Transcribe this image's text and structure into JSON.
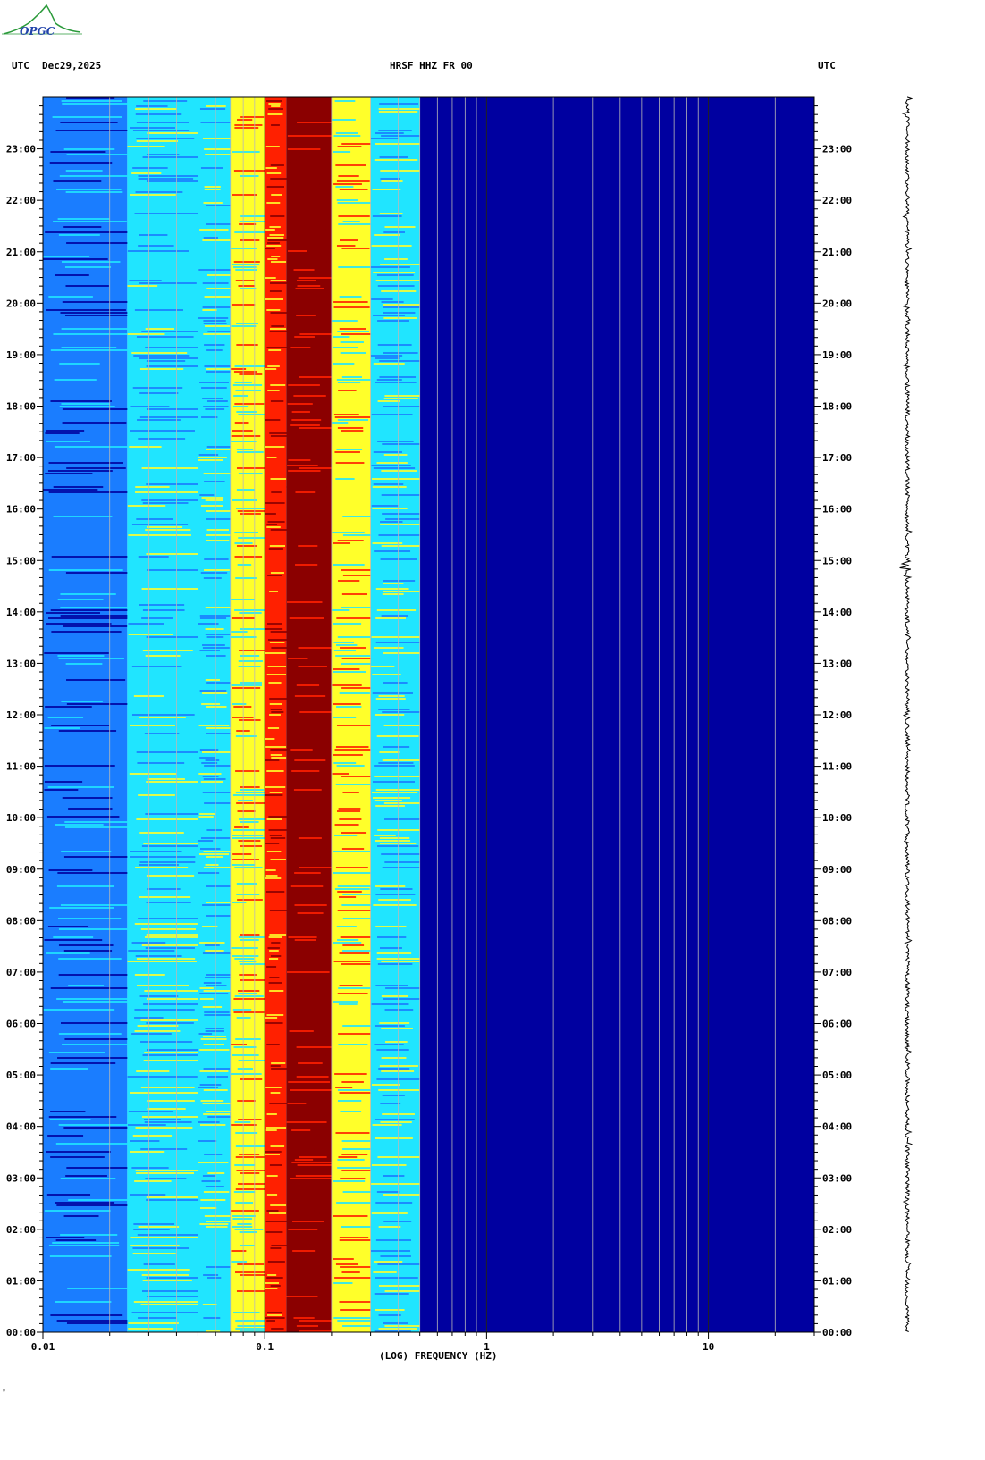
{
  "header": {
    "left_label": "UTC",
    "date": "Dec29,2025",
    "title": "HRSF HHZ FR 00",
    "right_label": "UTC"
  },
  "logo": {
    "text": "OPGC"
  },
  "footer": {
    "mark": "◦"
  },
  "colors": {
    "background": "#ffffff",
    "low_power": "#0000a0",
    "mid_low": "#1a7dff",
    "mid": "#20e5ff",
    "mid_high": "#ffff2a",
    "high": "#ff2000",
    "peak": "#8b0000",
    "logo": "#2a9a3a"
  },
  "chart_data": {
    "type": "heatmap",
    "title": "HRSF HHZ FR 00",
    "xlabel": "(LOG) FREQUENCY (HZ)",
    "ylabel": "UTC",
    "x_scale": "log",
    "xlim": [
      0.01,
      30
    ],
    "x_ticks": [
      "0.01",
      "0.1",
      "1",
      "10"
    ],
    "y_ticks": [
      "00:00",
      "01:00",
      "02:00",
      "03:00",
      "04:00",
      "05:00",
      "06:00",
      "07:00",
      "08:00",
      "09:00",
      "10:00",
      "11:00",
      "12:00",
      "13:00",
      "14:00",
      "15:00",
      "16:00",
      "17:00",
      "18:00",
      "19:00",
      "20:00",
      "21:00",
      "22:00",
      "23:00"
    ],
    "ylim_hours": [
      0,
      24
    ],
    "grid": true,
    "spectral_bands": [
      {
        "f_low": 0.01,
        "f_high": 0.024,
        "level": "mid_low"
      },
      {
        "f_low": 0.024,
        "f_high": 0.05,
        "level": "mid"
      },
      {
        "f_low": 0.05,
        "f_high": 0.07,
        "level": "mid"
      },
      {
        "f_low": 0.07,
        "f_high": 0.1,
        "level": "mid_high"
      },
      {
        "f_low": 0.1,
        "f_high": 0.125,
        "level": "high"
      },
      {
        "f_low": 0.125,
        "f_high": 0.2,
        "level": "peak"
      },
      {
        "f_low": 0.2,
        "f_high": 0.3,
        "level": "mid_high"
      },
      {
        "f_low": 0.3,
        "f_high": 0.5,
        "level": "mid"
      },
      {
        "f_low": 0.5,
        "f_high": 30,
        "level": "low_power"
      }
    ]
  }
}
